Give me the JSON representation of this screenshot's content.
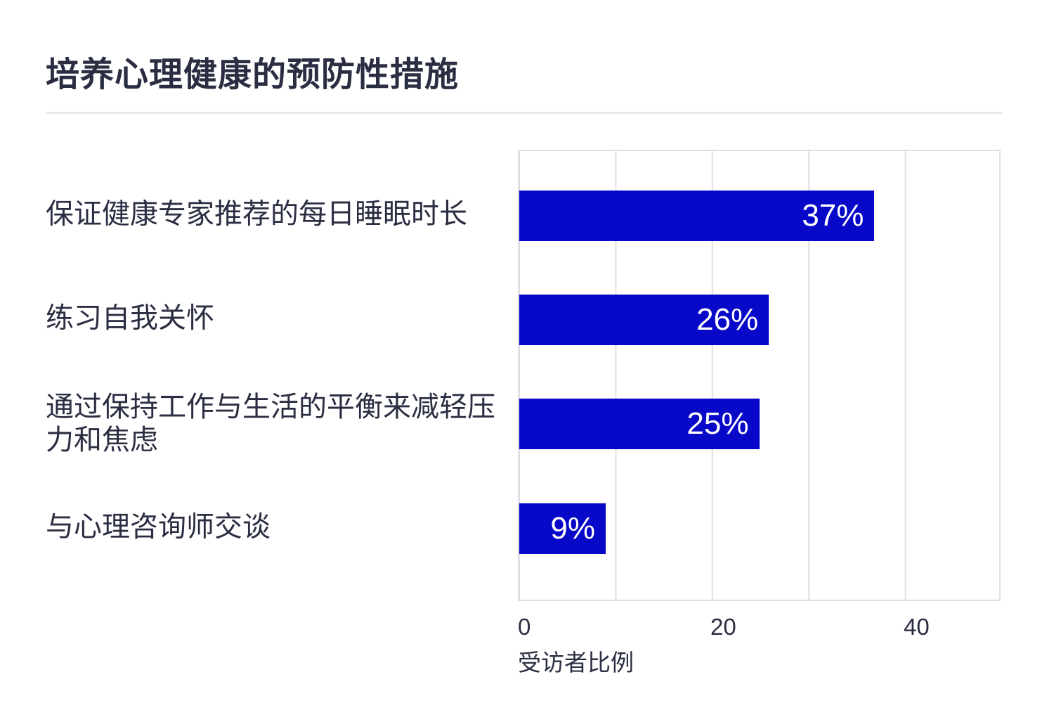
{
  "chart_data": {
    "type": "bar",
    "orientation": "horizontal",
    "title": "培养心理健康的预防性措施",
    "categories": [
      "保证健康专家推荐的每日睡眠时长",
      "练习自我关怀",
      "通过保持工作与生活的平衡来减轻压力和焦虑",
      "与心理咨询师交谈"
    ],
    "values": [
      37,
      26,
      25,
      9
    ],
    "value_labels": [
      "37%",
      "26%",
      "25%",
      "9%"
    ],
    "xlabel": "受访者比例",
    "xlim": [
      0,
      50
    ],
    "xticks": [
      "0",
      "20",
      "40"
    ],
    "gridline_step": 10,
    "grid": "vertical",
    "legend": "none"
  },
  "colors": {
    "bar": "#0808c8",
    "text": "#2b2e42",
    "grid": "#dfdfe4",
    "value_text": "#ffffff",
    "background": "#ffffff"
  }
}
